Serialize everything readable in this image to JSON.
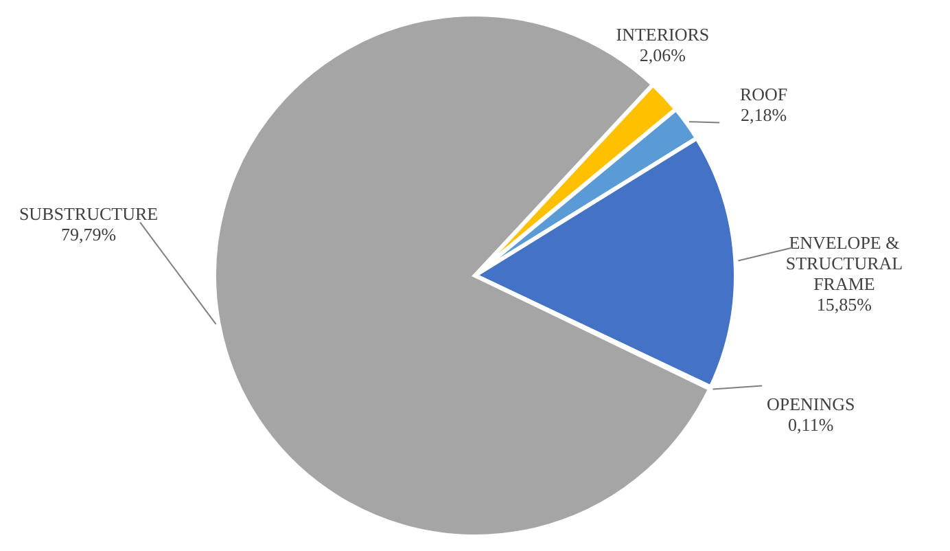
{
  "chart_data": {
    "type": "pie",
    "categories": [
      "INTERIORS",
      "ROOF",
      "ENVELOPE & STRUCTURAL FRAME",
      "OPENINGS",
      "SUBSTRUCTURE"
    ],
    "values": [
      2.06,
      2.18,
      15.85,
      0.11,
      79.79
    ],
    "value_labels": [
      "2,06%",
      "2,18%",
      "15,85%",
      "0,11%",
      "79,79%"
    ],
    "colors": [
      "#ffc000",
      "#5b9bd5",
      "#4472c4",
      "#ed7d31",
      "#a5a5a5"
    ]
  }
}
